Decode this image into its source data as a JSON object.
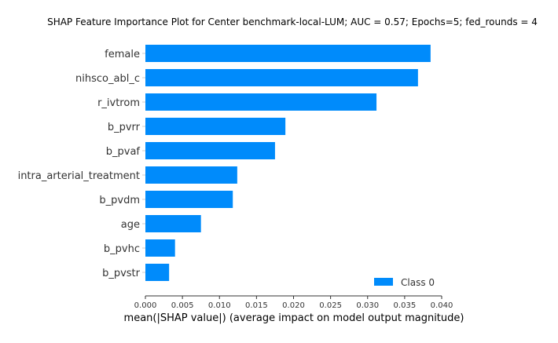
{
  "chart_data": {
    "type": "bar",
    "orientation": "horizontal",
    "title": "SHAP Feature Importance Plot for Center benchmark-local-LUM; AUC = 0.57; Epochs=5; fed_rounds = 4",
    "xlabel": "mean(|SHAP value|) (average impact on model output magnitude)",
    "ylabel": "",
    "xlim": [
      0,
      0.04
    ],
    "x_ticks": [
      "0.000",
      "0.005",
      "0.010",
      "0.015",
      "0.020",
      "0.025",
      "0.030",
      "0.035",
      "0.040"
    ],
    "categories": [
      "female",
      "nihsco_abl_c",
      "r_ivtrom",
      "b_pvrr",
      "b_pvaf",
      "intra_arterial_treatment",
      "b_pvdm",
      "age",
      "b_pvhc",
      "b_pvstr"
    ],
    "series": [
      {
        "name": "Class 0",
        "color": "#008bfb",
        "values": [
          0.0385,
          0.0368,
          0.0312,
          0.0189,
          0.0175,
          0.0124,
          0.0118,
          0.0075,
          0.004,
          0.0032
        ]
      }
    ],
    "legend": {
      "position": "bottom-right",
      "entries": [
        "Class 0"
      ]
    },
    "grid": false
  }
}
